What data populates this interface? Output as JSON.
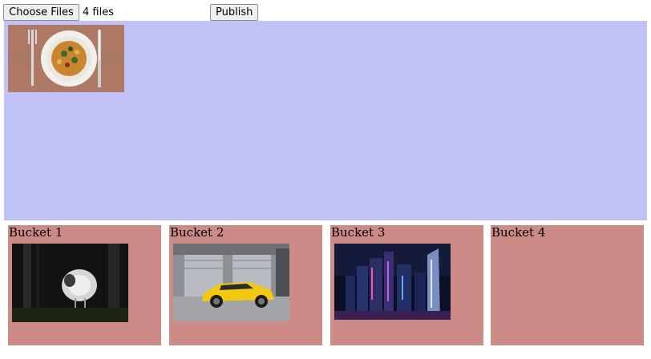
{
  "toolbar": {
    "choose_label": "Choose Files",
    "file_count": "4 files",
    "publish_label": "Publish"
  },
  "dropzone": {
    "background": "#bfc1f7",
    "items": [
      {
        "image": "pasta-plate-photo"
      }
    ]
  },
  "buckets": [
    {
      "label": "Bucket 1",
      "image": "sheep-in-dark-photo"
    },
    {
      "label": "Bucket 2",
      "image": "yellow-sports-car-photo"
    },
    {
      "label": "Bucket 3",
      "image": "city-skyline-night-photo"
    },
    {
      "label": "Bucket 4",
      "image": null
    }
  ],
  "colors": {
    "bucket_bg": "#cc8b86",
    "dropzone_bg": "#bfc1f7"
  }
}
